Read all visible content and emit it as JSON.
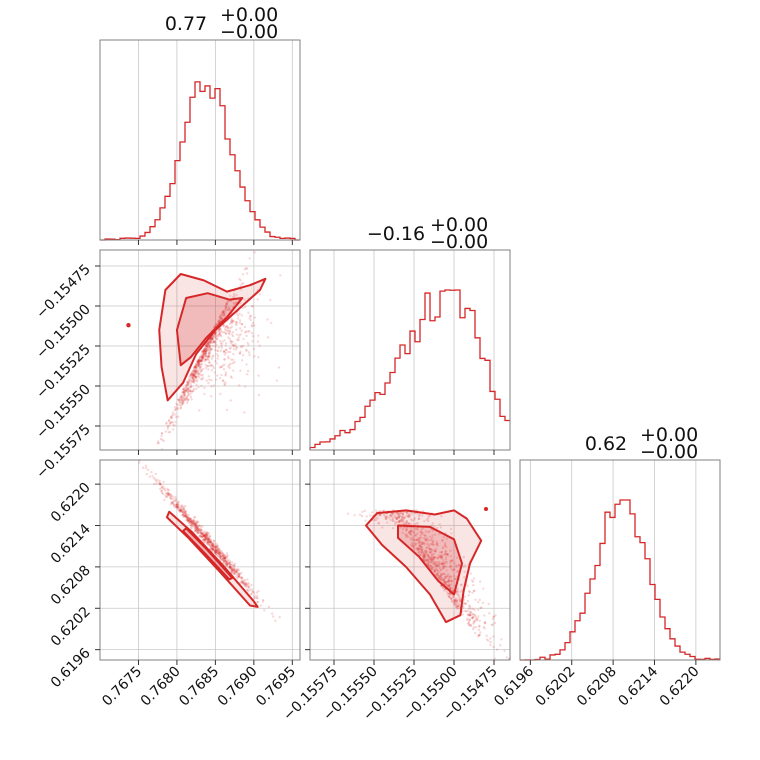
{
  "chart_data": {
    "type": "corner",
    "color": "#d62728",
    "parameters": [
      {
        "title": {
          "value": "0.77",
          "plus": "+0.00",
          "minus": "−0.00"
        },
        "range": [
          0.767,
          0.7696
        ],
        "ticks": [
          {
            "value": 0.7675,
            "label": "0.7675"
          },
          {
            "value": 0.768,
            "label": "0.7680"
          },
          {
            "value": 0.7685,
            "label": "0.7685"
          },
          {
            "value": 0.769,
            "label": "0.7690"
          },
          {
            "value": 0.7695,
            "label": "0.7695"
          }
        ],
        "hist": {
          "peak": 0.76839,
          "sd": 0.00032
        }
      },
      {
        "title": {
          "value": "−0.16",
          "plus": "+0.00",
          "minus": "−0.00"
        },
        "range": [
          -0.1559,
          -0.15465
        ],
        "ticks": [
          {
            "value": -0.15575,
            "label": "−0.15575"
          },
          {
            "value": -0.1555,
            "label": "−0.15550"
          },
          {
            "value": -0.15525,
            "label": "−0.15525"
          },
          {
            "value": -0.155,
            "label": "−0.15500"
          },
          {
            "value": -0.15475,
            "label": "−0.15475"
          }
        ],
        "hist": {
          "peak": -0.155,
          "sd": 0.00018
        }
      },
      {
        "title": {
          "value": "0.62",
          "plus": "+0.00",
          "minus": "−0.00"
        },
        "range": [
          0.61945,
          0.62235
        ],
        "ticks": [
          {
            "value": 0.6196,
            "label": "0.6196"
          },
          {
            "value": 0.6202,
            "label": "0.6202"
          },
          {
            "value": 0.6208,
            "label": "0.6208"
          },
          {
            "value": 0.6214,
            "label": "0.6214"
          },
          {
            "value": 0.622,
            "label": "0.6220"
          }
        ],
        "hist": {
          "peak": 0.62092,
          "sd": 0.00037
        }
      }
    ],
    "grid": true
  }
}
